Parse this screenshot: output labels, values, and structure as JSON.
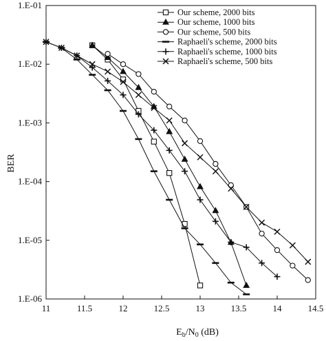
{
  "chart_data": {
    "type": "line",
    "title": "",
    "xlabel": {
      "main": "E",
      "sub_b": "b",
      "slash": "/N",
      "sub_0": "0",
      "unit": " (dB)"
    },
    "ylabel": "BER",
    "xlim": [
      11,
      14.5
    ],
    "ylim": [
      1e-06,
      0.1
    ],
    "y_scale": "log",
    "grid": false,
    "legend_position": "top-right",
    "x_ticks": [
      11,
      11.5,
      12,
      12.5,
      13,
      13.5,
      14,
      14.5
    ],
    "x_tick_labels": [
      "11",
      "11.5",
      "12",
      "12.5",
      "13",
      "13.5",
      "14",
      "14.5"
    ],
    "y_ticks": [
      0.1,
      0.01,
      0.001,
      0.0001,
      1e-05,
      1e-06
    ],
    "y_tick_labels": [
      "1.E-01",
      "1.E-02",
      "1.E-03",
      "1.E-04",
      "1.E-05",
      "1.E-06"
    ],
    "series": [
      {
        "name": "Our scheme, 2000 bits",
        "marker": "square",
        "x": [
          11.6,
          11.8,
          12.0,
          12.2,
          12.4,
          12.6,
          12.8,
          13.0
        ],
        "y": [
          0.021,
          0.012,
          0.0055,
          0.0016,
          0.00048,
          0.00014,
          1.9e-05,
          1.7e-06
        ]
      },
      {
        "name": "Our scheme, 1000 bits",
        "marker": "triangle",
        "x": [
          11.6,
          11.8,
          12.0,
          12.2,
          12.4,
          12.6,
          12.8,
          13.0,
          13.2,
          13.4,
          13.6
        ],
        "y": [
          0.021,
          0.013,
          0.0075,
          0.004,
          0.0019,
          0.00071,
          0.00024,
          8.2e-05,
          3.2e-05,
          9.2e-06,
          1.7e-06
        ]
      },
      {
        "name": "Our scheme, 500 bits",
        "marker": "circle",
        "x": [
          11.8,
          12.0,
          12.2,
          12.4,
          12.6,
          12.8,
          13.0,
          13.2,
          13.4,
          13.6,
          13.8,
          14.0,
          14.2,
          14.4
        ],
        "y": [
          0.015,
          0.01,
          0.0068,
          0.0034,
          0.0019,
          0.0011,
          0.00049,
          0.0002,
          8.7e-05,
          3.7e-05,
          1.3e-05,
          6.8e-06,
          3.7e-06,
          2.1e-06
        ]
      },
      {
        "name": "Raphaeli's scheme, 2000 bits",
        "marker": "dash",
        "x": [
          11.0,
          11.2,
          11.4,
          11.6,
          11.8,
          12.0,
          12.2,
          12.4,
          12.6,
          12.8,
          13.0,
          13.2,
          13.4,
          13.6
        ],
        "y": [
          0.024,
          0.019,
          0.012,
          0.0066,
          0.0036,
          0.0016,
          0.00053,
          0.00015,
          4.9e-05,
          1.6e-05,
          8.5e-06,
          4.1e-06,
          1.9e-06,
          1.2e-06
        ]
      },
      {
        "name": "Raphaeli's scheme, 1000 bits",
        "marker": "plus",
        "x": [
          11.0,
          11.2,
          11.4,
          11.6,
          11.8,
          12.0,
          12.2,
          12.4,
          12.6,
          12.8,
          13.0,
          13.2,
          13.4,
          13.6,
          13.8,
          14.0
        ],
        "y": [
          0.024,
          0.019,
          0.014,
          0.0088,
          0.0052,
          0.003,
          0.0014,
          0.00075,
          0.00034,
          0.00015,
          4.9e-05,
          2.1e-05,
          9.3e-06,
          7.6e-06,
          4.1e-06,
          2.4e-06
        ]
      },
      {
        "name": "Raphaeli's scheme, 500 bits",
        "marker": "x",
        "x": [
          11.0,
          11.2,
          11.4,
          11.6,
          11.8,
          12.0,
          12.2,
          12.4,
          12.6,
          12.8,
          13.0,
          13.2,
          13.4,
          13.6,
          13.8,
          14.0,
          14.2,
          14.4
        ],
        "y": [
          0.024,
          0.019,
          0.014,
          0.01,
          0.0075,
          0.005,
          0.003,
          0.0018,
          0.0011,
          0.00045,
          0.00026,
          0.00015,
          7.6e-05,
          3.7e-05,
          2e-05,
          1.4e-05,
          8.2e-06,
          4.3e-06
        ]
      }
    ]
  }
}
